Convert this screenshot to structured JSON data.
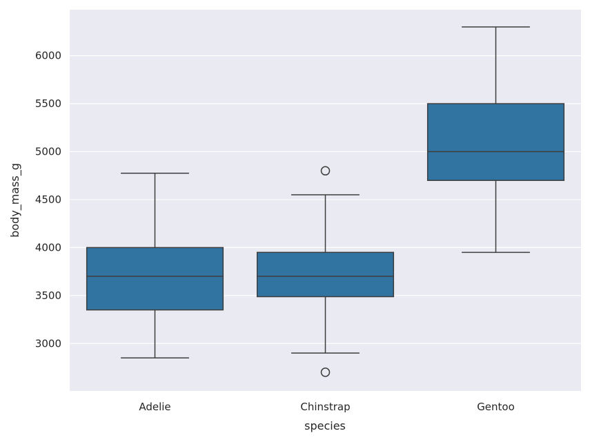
{
  "chart_data": {
    "type": "box",
    "title": "",
    "xlabel": "species",
    "ylabel": "body_mass_g",
    "ylim": [
      2505,
      6480
    ],
    "yticks": [
      3000,
      3500,
      4000,
      4500,
      5000,
      5500,
      6000
    ],
    "grid": true,
    "categories": [
      "Adelie",
      "Chinstrap",
      "Gentoo"
    ],
    "boxes": [
      {
        "category": "Adelie",
        "whisker_low": 2850,
        "q1": 3350,
        "median": 3700,
        "q3": 4000,
        "whisker_high": 4775,
        "outliers": []
      },
      {
        "category": "Chinstrap",
        "whisker_low": 2900,
        "q1": 3488,
        "median": 3700,
        "q3": 3950,
        "whisker_high": 4550,
        "outliers": [
          4800,
          2700
        ]
      },
      {
        "category": "Gentoo",
        "whisker_low": 3950,
        "q1": 4700,
        "median": 5000,
        "q3": 5500,
        "whisker_high": 6300,
        "outliers": []
      }
    ],
    "colors": {
      "box_fill": "#3274a1",
      "line": "#3d3d3d",
      "background": "#eaeaf2",
      "grid": "#ffffff"
    }
  }
}
